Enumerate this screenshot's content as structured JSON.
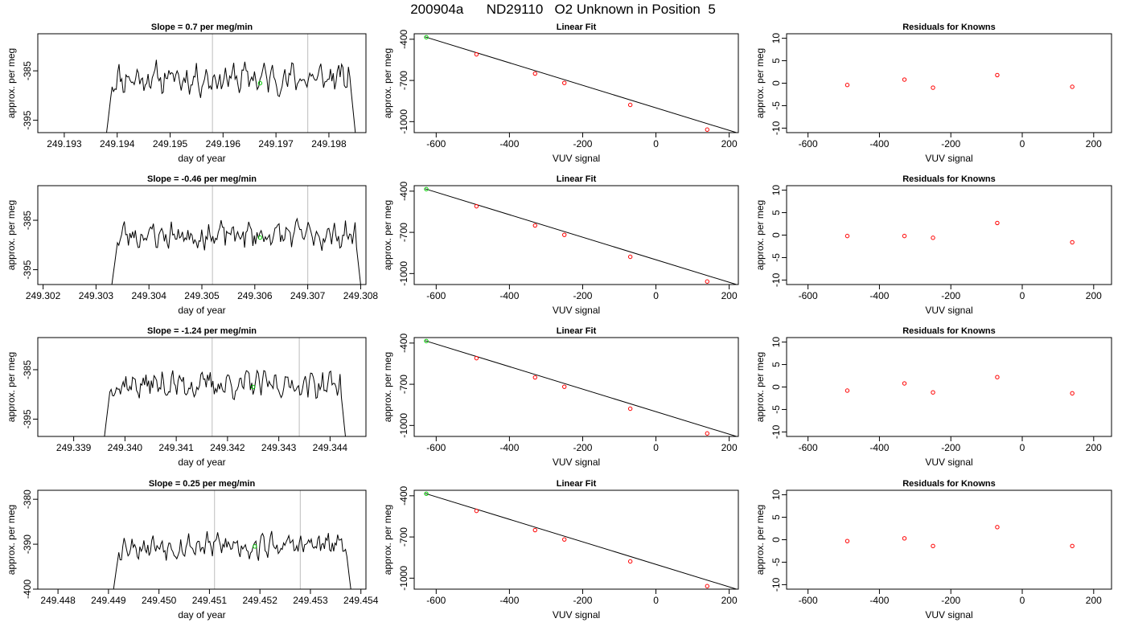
{
  "figure": {
    "title": "200904a      ND29110   O2 Unknown in Position  5"
  },
  "chart_data": [
    {
      "type": "line",
      "panel": "timeseries",
      "title": "Slope =  0.7  per meg/min",
      "xlabel": "day of year",
      "ylabel": "approx. per meg",
      "xlim": [
        249.1925,
        249.1987
      ],
      "ylim": [
        -397.5,
        -377.5
      ],
      "xticks": [
        249.193,
        249.194,
        249.195,
        249.196,
        249.197,
        249.198
      ],
      "xtick_labels": [
        "249.193",
        "249.194",
        "249.195",
        "249.196",
        "249.197",
        "249.198"
      ],
      "yticks": [
        -385,
        -395
      ],
      "ytick_labels": [
        "-385",
        "-395"
      ],
      "vlines": [
        249.1958,
        249.1976
      ],
      "trace": {
        "start": 249.1938,
        "end": 249.1985,
        "points": 180,
        "baseline": -386.5,
        "amplitude": 2.2,
        "seed": 11,
        "edge_low": -397.5
      },
      "marker": {
        "x": 249.1967,
        "y": -387.5
      }
    },
    {
      "type": "scatter",
      "panel": "fit",
      "title": "Linear Fit",
      "xlabel": "VUV signal",
      "ylabel": "approx. per meg",
      "xlim": [
        -660,
        225
      ],
      "ylim": [
        -1080,
        -360
      ],
      "xticks": [
        -600,
        -400,
        -200,
        0,
        200
      ],
      "xtick_labels": [
        "-600",
        "-400",
        "-200",
        "0",
        "200"
      ],
      "yticks": [
        -400,
        -700,
        -1000
      ],
      "ytick_labels": [
        "-400",
        "-700",
        "-1000"
      ],
      "points": {
        "x": [
          -490,
          -330,
          -250,
          -70,
          140
        ],
        "y": [
          -510,
          -650,
          -718,
          -878,
          -1058
        ]
      },
      "line": {
        "x": [
          -630,
          220
        ],
        "y": [
          -383,
          -1080
        ]
      },
      "marker": {
        "x": -627,
        "y": -385
      }
    },
    {
      "type": "scatter",
      "panel": "residuals",
      "title": "Residuals for Knowns",
      "xlabel": "VUV signal",
      "ylabel": "approx. per meg",
      "xlim": [
        -660,
        250
      ],
      "ylim": [
        -11,
        11
      ],
      "xticks": [
        -600,
        -400,
        -200,
        0,
        200
      ],
      "xtick_labels": [
        "-600",
        "-400",
        "-200",
        "0",
        "200"
      ],
      "yticks": [
        10,
        5,
        0,
        -5,
        -10
      ],
      "ytick_labels": [
        "10",
        "5",
        "0",
        "-5",
        "-10"
      ],
      "points": {
        "x": [
          -490,
          -330,
          -250,
          -70,
          140
        ],
        "y": [
          -0.4,
          0.8,
          -1.0,
          1.8,
          -0.8
        ]
      }
    },
    {
      "type": "line",
      "panel": "timeseries",
      "title": "Slope =  -0.46  per meg/min",
      "xlabel": "day of year",
      "ylabel": "approx. per meg",
      "xlim": [
        249.3019,
        249.3081
      ],
      "ylim": [
        -398,
        -378
      ],
      "xticks": [
        249.302,
        249.303,
        249.304,
        249.305,
        249.306,
        249.307,
        249.308
      ],
      "xtick_labels": [
        "249.302",
        "249.303",
        "249.304",
        "249.305",
        "249.306",
        "249.307",
        "249.308"
      ],
      "yticks": [
        -385,
        -395
      ],
      "ytick_labels": [
        "-385",
        "-395"
      ],
      "vlines": [
        249.3052,
        249.307
      ],
      "trace": {
        "start": 249.3033,
        "end": 249.308,
        "points": 180,
        "baseline": -388,
        "amplitude": 2.0,
        "seed": 23,
        "edge_low": -398
      },
      "marker": {
        "x": 249.3061,
        "y": -388.5
      }
    },
    {
      "type": "scatter",
      "panel": "fit",
      "title": "Linear Fit",
      "xlabel": "VUV signal",
      "ylabel": "approx. per meg",
      "xlim": [
        -660,
        225
      ],
      "ylim": [
        -1080,
        -360
      ],
      "xticks": [
        -600,
        -400,
        -200,
        0,
        200
      ],
      "xtick_labels": [
        "-600",
        "-400",
        "-200",
        "0",
        "200"
      ],
      "yticks": [
        -400,
        -700,
        -1000
      ],
      "ytick_labels": [
        "-400",
        "-700",
        "-1000"
      ],
      "points": {
        "x": [
          -490,
          -330,
          -250,
          -70,
          140
        ],
        "y": [
          -510,
          -650,
          -718,
          -878,
          -1058
        ]
      },
      "line": {
        "x": [
          -630,
          220
        ],
        "y": [
          -383,
          -1080
        ]
      },
      "marker": {
        "x": -627,
        "y": -385
      }
    },
    {
      "type": "scatter",
      "panel": "residuals",
      "title": "Residuals for Knowns",
      "xlabel": "VUV signal",
      "ylabel": "approx. per meg",
      "xlim": [
        -660,
        250
      ],
      "ylim": [
        -11,
        11
      ],
      "xticks": [
        -600,
        -400,
        -200,
        0,
        200
      ],
      "xtick_labels": [
        "-600",
        "-400",
        "-200",
        "0",
        "200"
      ],
      "yticks": [
        10,
        5,
        0,
        -5,
        -10
      ],
      "ytick_labels": [
        "10",
        "5",
        "0",
        "-5",
        "-10"
      ],
      "points": {
        "x": [
          -490,
          -330,
          -250,
          -70,
          140
        ],
        "y": [
          -0.2,
          -0.2,
          -0.6,
          2.7,
          -1.6
        ]
      }
    },
    {
      "type": "line",
      "panel": "timeseries",
      "title": "Slope =  -1.24  per meg/min",
      "xlabel": "day of year",
      "ylabel": "approx. per meg",
      "xlim": [
        249.3383,
        249.3447
      ],
      "ylim": [
        -398.5,
        -378.5
      ],
      "xticks": [
        249.339,
        249.34,
        249.341,
        249.342,
        249.343,
        249.344
      ],
      "xtick_labels": [
        "249.339",
        "249.340",
        "249.341",
        "249.342",
        "249.343",
        "249.344"
      ],
      "yticks": [
        -385,
        -395
      ],
      "ytick_labels": [
        "-385",
        "-395"
      ],
      "vlines": [
        249.3417,
        249.3434
      ],
      "trace": {
        "start": 249.3396,
        "end": 249.3443,
        "points": 180,
        "baseline": -388,
        "amplitude": 2.0,
        "seed": 37,
        "edge_low": -398.5
      },
      "marker": {
        "x": 249.3425,
        "y": -388.5
      }
    },
    {
      "type": "scatter",
      "panel": "fit",
      "title": "Linear Fit",
      "xlabel": "VUV signal",
      "ylabel": "approx. per meg",
      "xlim": [
        -660,
        225
      ],
      "ylim": [
        -1080,
        -360
      ],
      "xticks": [
        -600,
        -400,
        -200,
        0,
        200
      ],
      "xtick_labels": [
        "-600",
        "-400",
        "-200",
        "0",
        "200"
      ],
      "yticks": [
        -400,
        -700,
        -1000
      ],
      "ytick_labels": [
        "-400",
        "-700",
        "-1000"
      ],
      "points": {
        "x": [
          -490,
          -330,
          -250,
          -70,
          140
        ],
        "y": [
          -510,
          -650,
          -718,
          -878,
          -1058
        ]
      },
      "line": {
        "x": [
          -630,
          220
        ],
        "y": [
          -383,
          -1080
        ]
      },
      "marker": {
        "x": -627,
        "y": -385
      }
    },
    {
      "type": "scatter",
      "panel": "residuals",
      "title": "Residuals for Knowns",
      "xlabel": "VUV signal",
      "ylabel": "approx. per meg",
      "xlim": [
        -660,
        250
      ],
      "ylim": [
        -11,
        11
      ],
      "xticks": [
        -600,
        -400,
        -200,
        0,
        200
      ],
      "xtick_labels": [
        "-600",
        "-400",
        "-200",
        "0",
        "200"
      ],
      "yticks": [
        10,
        5,
        0,
        -5,
        -10
      ],
      "ytick_labels": [
        "10",
        "5",
        "0",
        "-5",
        "-10"
      ],
      "points": {
        "x": [
          -490,
          -330,
          -250,
          -70,
          140
        ],
        "y": [
          -0.8,
          0.8,
          -1.2,
          2.2,
          -1.4
        ]
      }
    },
    {
      "type": "line",
      "panel": "timeseries",
      "title": "Slope =  0.25  per meg/min",
      "xlabel": "day of year",
      "ylabel": "approx. per meg",
      "xlim": [
        249.4476,
        249.4541
      ],
      "ylim": [
        -400,
        -378
      ],
      "xticks": [
        249.448,
        249.449,
        249.45,
        249.451,
        249.452,
        249.453,
        249.454
      ],
      "xtick_labels": [
        "249.448",
        "249.449",
        "249.450",
        "249.451",
        "249.452",
        "249.453",
        "249.454"
      ],
      "yticks": [
        -380,
        -390,
        -400
      ],
      "ytick_labels": [
        "-380",
        "-390",
        "-400"
      ],
      "vlines": [
        249.4511,
        249.4528
      ],
      "trace": {
        "start": 249.4491,
        "end": 249.4538,
        "points": 180,
        "baseline": -390.3,
        "amplitude": 2.0,
        "seed": 53,
        "edge_low": -400
      },
      "marker": {
        "x": 249.4519,
        "y": -390.5
      }
    },
    {
      "type": "scatter",
      "panel": "fit",
      "title": "Linear Fit",
      "xlabel": "VUV signal",
      "ylabel": "approx. per meg",
      "xlim": [
        -660,
        225
      ],
      "ylim": [
        -1080,
        -360
      ],
      "xticks": [
        -600,
        -400,
        -200,
        0,
        200
      ],
      "xtick_labels": [
        "-600",
        "-400",
        "-200",
        "0",
        "200"
      ],
      "yticks": [
        -400,
        -700,
        -1000
      ],
      "ytick_labels": [
        "-400",
        "-700",
        "-1000"
      ],
      "points": {
        "x": [
          -490,
          -330,
          -250,
          -70,
          140
        ],
        "y": [
          -510,
          -650,
          -718,
          -878,
          -1058
        ]
      },
      "line": {
        "x": [
          -630,
          220
        ],
        "y": [
          -383,
          -1080
        ]
      },
      "marker": {
        "x": -627,
        "y": -385
      }
    },
    {
      "type": "scatter",
      "panel": "residuals",
      "title": "Residuals for Knowns",
      "xlabel": "VUV signal",
      "ylabel": "approx. per meg",
      "xlim": [
        -660,
        250
      ],
      "ylim": [
        -11,
        11
      ],
      "xticks": [
        -600,
        -400,
        -200,
        0,
        200
      ],
      "xtick_labels": [
        "-600",
        "-400",
        "-200",
        "0",
        "200"
      ],
      "yticks": [
        10,
        5,
        0,
        -5,
        -10
      ],
      "ytick_labels": [
        "10",
        "5",
        "0",
        "-5",
        "-10"
      ],
      "points": {
        "x": [
          -490,
          -330,
          -250,
          -70,
          140
        ],
        "y": [
          -0.3,
          0.3,
          -1.4,
          2.8,
          -1.4
        ]
      }
    }
  ],
  "colors": {
    "trace": "#000000",
    "vline": "#c8c8c8",
    "known_points": "#ff0000",
    "unknown_marker": "#00cc00",
    "fit_line": "#000000",
    "axes": "#000000"
  }
}
